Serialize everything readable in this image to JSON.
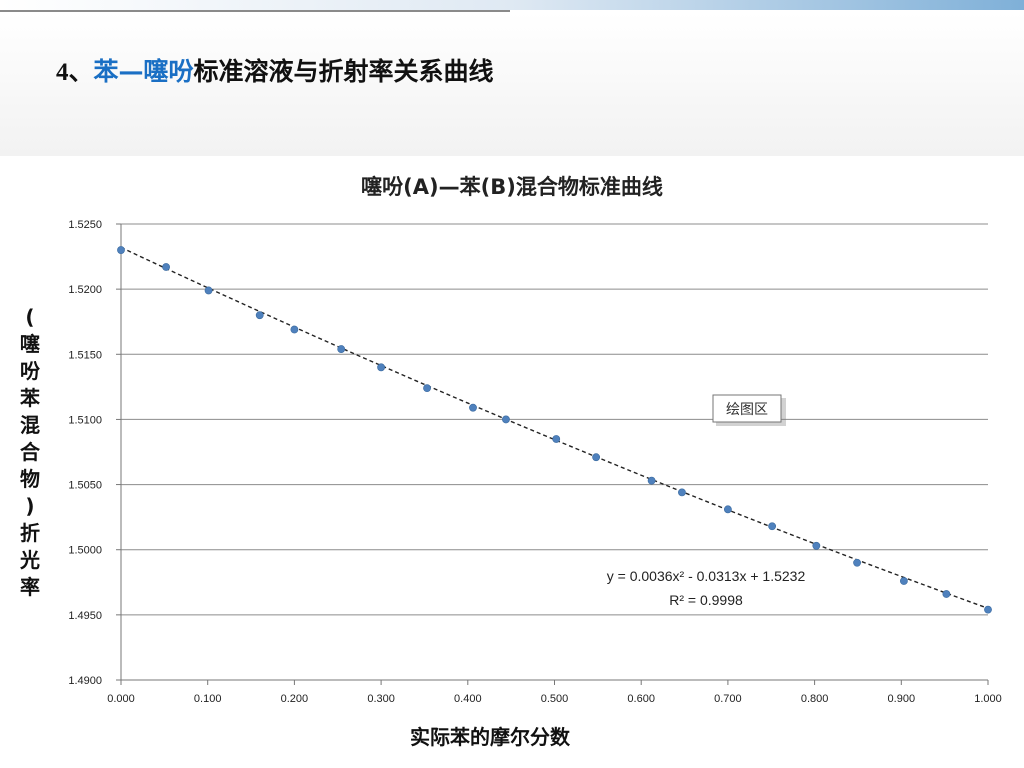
{
  "slide": {
    "title_number": "4、",
    "title_highlight": "苯—噻吩",
    "title_rest": "标准溶液与折射率关系曲线"
  },
  "tooltip": {
    "label": "绘图区"
  },
  "chart_data": {
    "type": "scatter",
    "title": "噻吩(A)—苯(B)混合物标准曲线",
    "xlabel": "实际苯的摩尔分数",
    "ylabel": "(噻吩苯混合物)折光率",
    "xlim": [
      0,
      1
    ],
    "ylim": [
      1.49,
      1.525
    ],
    "xticks": [
      "0.000",
      "0.100",
      "0.200",
      "0.300",
      "0.400",
      "0.500",
      "0.600",
      "0.700",
      "0.800",
      "0.900",
      "1.000"
    ],
    "yticks": [
      "1.4900",
      "1.4950",
      "1.5000",
      "1.5050",
      "1.5100",
      "1.5150",
      "1.5200",
      "1.5250"
    ],
    "grid": "horizontal",
    "series": [
      {
        "x": [
          0.0,
          0.052,
          0.101,
          0.16,
          0.2,
          0.254,
          0.3,
          0.353,
          0.406,
          0.444,
          0.502,
          0.548,
          0.612,
          0.647,
          0.7,
          0.751,
          0.802,
          0.849,
          0.903,
          0.952,
          1.0
        ],
        "y": [
          1.523,
          1.5217,
          1.5199,
          1.518,
          1.5169,
          1.5154,
          1.514,
          1.5124,
          1.5109,
          1.51,
          1.5085,
          1.5071,
          1.5053,
          1.5044,
          1.5031,
          1.5018,
          1.5003,
          1.499,
          1.4976,
          1.4966,
          1.4954
        ]
      }
    ],
    "trendline": {
      "type": "polynomial",
      "coefficients": [
        0.0036,
        -0.0313,
        1.5232
      ],
      "equation": "y = 0.0036x² - 0.0313x + 1.5232",
      "r2": "R² = 0.9998"
    },
    "colors": {
      "marker": "#4f81bd",
      "grid": "#8c8c8c",
      "trendline": "#222222"
    }
  }
}
